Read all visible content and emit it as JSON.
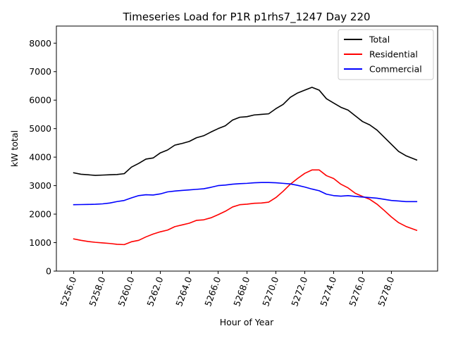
{
  "chart_data": {
    "type": "line",
    "title": "Timeseries Load for P1R p1rhs7_1247  Day 220",
    "xlabel": "Hour of Year",
    "ylabel": "kW total",
    "xlim": [
      5254.8,
      5281.2
    ],
    "ylim": [
      0,
      8600
    ],
    "x_ticks": [
      5256,
      5258,
      5260,
      5262,
      5264,
      5266,
      5268,
      5270,
      5272,
      5274,
      5276,
      5278
    ],
    "x_tick_labels": [
      "5256.0",
      "5258.0",
      "5260.0",
      "5262.0",
      "5264.0",
      "5266.0",
      "5268.0",
      "5270.0",
      "5272.0",
      "5274.0",
      "5276.0",
      "5278.0"
    ],
    "y_ticks": [
      0,
      1000,
      2000,
      3000,
      4000,
      5000,
      6000,
      7000,
      8000
    ],
    "y_tick_labels": [
      "0",
      "1000",
      "2000",
      "3000",
      "4000",
      "5000",
      "6000",
      "7000",
      "8000"
    ],
    "legend_position": "top-right",
    "x": [
      5256,
      5256.5,
      5257,
      5257.5,
      5258,
      5258.5,
      5259,
      5259.5,
      5260,
      5260.5,
      5261,
      5261.5,
      5262,
      5262.5,
      5263,
      5263.5,
      5264,
      5264.5,
      5265,
      5265.5,
      5266,
      5266.5,
      5267,
      5267.5,
      5268,
      5268.5,
      5269,
      5269.5,
      5270,
      5270.5,
      5271,
      5271.5,
      5272,
      5272.5,
      5273,
      5273.5,
      5274,
      5274.5,
      5275,
      5275.5,
      5276,
      5276.5,
      5277,
      5277.5,
      5278,
      5278.5,
      5279,
      5279.75
    ],
    "series": [
      {
        "name": "Total",
        "color": "#000000",
        "values": [
          3450,
          3400,
          3380,
          3360,
          3370,
          3380,
          3390,
          3420,
          3650,
          3780,
          3930,
          3970,
          4150,
          4250,
          4420,
          4480,
          4550,
          4680,
          4750,
          4880,
          5000,
          5100,
          5300,
          5400,
          5420,
          5480,
          5500,
          5520,
          5700,
          5850,
          6100,
          6250,
          6350,
          6450,
          6350,
          6050,
          5900,
          5750,
          5650,
          5450,
          5250,
          5130,
          4950,
          4700,
          4450,
          4200,
          4050,
          3900
        ]
      },
      {
        "name": "Residential",
        "color": "#ff0000",
        "values": [
          1130,
          1080,
          1040,
          1010,
          990,
          970,
          940,
          930,
          1030,
          1080,
          1200,
          1300,
          1380,
          1440,
          1560,
          1620,
          1680,
          1780,
          1800,
          1870,
          1980,
          2100,
          2250,
          2330,
          2350,
          2380,
          2390,
          2420,
          2580,
          2800,
          3050,
          3250,
          3430,
          3550,
          3550,
          3350,
          3250,
          3050,
          2920,
          2730,
          2620,
          2520,
          2350,
          2130,
          1900,
          1700,
          1570,
          1430
        ]
      },
      {
        "name": "Commercial",
        "color": "#0000ff",
        "values": [
          2330,
          2335,
          2340,
          2345,
          2360,
          2390,
          2440,
          2480,
          2570,
          2650,
          2680,
          2670,
          2710,
          2780,
          2810,
          2830,
          2850,
          2870,
          2890,
          2940,
          3000,
          3020,
          3050,
          3070,
          3080,
          3100,
          3110,
          3110,
          3100,
          3080,
          3060,
          3010,
          2950,
          2880,
          2820,
          2700,
          2650,
          2630,
          2650,
          2620,
          2600,
          2580,
          2560,
          2520,
          2480,
          2460,
          2440,
          2440
        ]
      }
    ]
  }
}
